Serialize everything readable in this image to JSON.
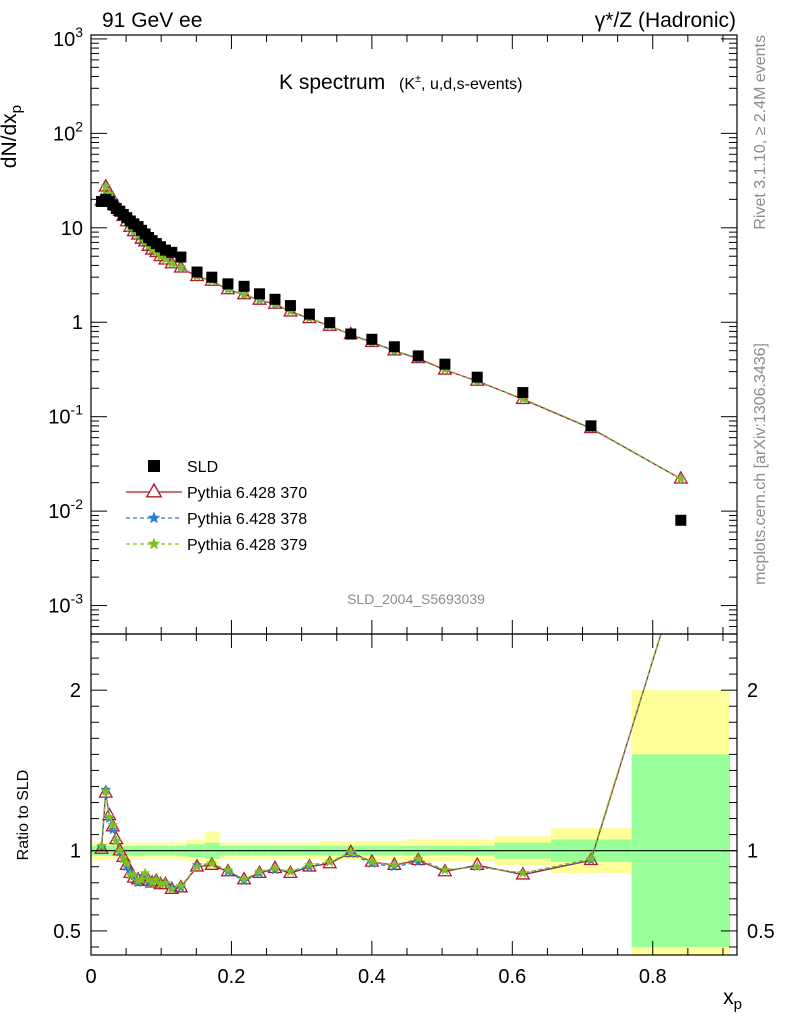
{
  "header": {
    "left": "91 GeV ee",
    "right": "γ*/Z (Hadronic)"
  },
  "side_labels": {
    "rivet": "Rivet 3.1.10, ≥ 2.4M events",
    "mcplots": "mcplots.cern.ch [arXiv:1306.3436]"
  },
  "chart_data": {
    "type": "scatter",
    "title": "K spectrum",
    "title_sub": "(K±, u,d,s-events)",
    "analysis_id": "SLD_2004_S5693039",
    "xlabel": "x_p",
    "ylabel": "dN/dx_p",
    "ratio_ylabel": "Ratio to SLD",
    "xlim": [
      0,
      0.92
    ],
    "ylim": [
      0.0005,
      1100
    ],
    "ylog": true,
    "ratio_ylim": [
      0.35,
      2.35
    ],
    "x_ticks": [
      "0",
      "0.2",
      "0.4",
      "0.6",
      "0.8"
    ],
    "y_ticks": [
      "10^-3",
      "10^-2",
      "10^-1",
      "1",
      "10",
      "10^2",
      "10^3"
    ],
    "ratio_ticks": [
      "0.5",
      "1",
      "2"
    ],
    "legend": {
      "position": "middle-left",
      "entries": [
        "SLD",
        "Pythia 6.428 370",
        "Pythia 6.428 378",
        "Pythia 6.428 379"
      ]
    },
    "x": [
      0.015,
      0.021,
      0.026,
      0.031,
      0.036,
      0.041,
      0.046,
      0.051,
      0.056,
      0.061,
      0.067,
      0.072,
      0.077,
      0.082,
      0.087,
      0.093,
      0.099,
      0.106,
      0.115,
      0.128,
      0.151,
      0.172,
      0.195,
      0.218,
      0.24,
      0.262,
      0.284,
      0.311,
      0.34,
      0.37,
      0.4,
      0.432,
      0.466,
      0.504,
      0.55,
      0.615,
      0.712,
      0.84
    ],
    "data": [
      19.0,
      20.0,
      19.0,
      17.5,
      16.0,
      15.0,
      13.8,
      12.8,
      11.8,
      11.0,
      10.3,
      9.4,
      8.6,
      7.9,
      7.3,
      6.8,
      6.3,
      5.8,
      5.5,
      4.9,
      3.4,
      3.0,
      2.55,
      2.4,
      2.0,
      1.75,
      1.5,
      1.22,
      0.99,
      0.75,
      0.66,
      0.55,
      0.44,
      0.36,
      0.262,
      0.18,
      0.08,
      0.008
    ],
    "series": [
      {
        "name": "SLD",
        "color": "#000000",
        "marker": "square"
      },
      {
        "name": "Pythia 6.428 370",
        "color": "#b2182b",
        "marker": "open-triangle"
      },
      {
        "name": "Pythia 6.428 378",
        "color": "#2c7bd6",
        "marker": "star"
      },
      {
        "name": "Pythia 6.428 379",
        "color": "#7fbf1f",
        "marker": "star"
      }
    ],
    "ratio": {
      "p370": [
        1.01,
        1.36,
        1.22,
        1.15,
        1.07,
        1.0,
        0.96,
        0.91,
        0.86,
        0.83,
        0.82,
        0.81,
        0.83,
        0.81,
        0.8,
        0.81,
        0.79,
        0.79,
        0.76,
        0.77,
        0.9,
        0.91,
        0.87,
        0.82,
        0.86,
        0.89,
        0.86,
        0.9,
        0.92,
        0.99,
        0.93,
        0.91,
        0.94,
        0.87,
        0.91,
        0.85,
        0.94,
        2.75
      ],
      "p378": [
        1.02,
        1.38,
        1.2,
        1.13,
        1.06,
        0.99,
        0.95,
        0.9,
        0.87,
        0.84,
        0.8,
        0.82,
        0.84,
        0.8,
        0.81,
        0.82,
        0.8,
        0.8,
        0.77,
        0.77,
        0.91,
        0.92,
        0.87,
        0.81,
        0.86,
        0.88,
        0.87,
        0.9,
        0.93,
        0.98,
        0.92,
        0.9,
        0.93,
        0.88,
        0.9,
        0.86,
        0.94,
        2.75
      ],
      "p379": [
        1.03,
        1.37,
        1.21,
        1.16,
        1.06,
        1.0,
        0.95,
        0.92,
        0.85,
        0.85,
        0.81,
        0.82,
        0.86,
        0.82,
        0.8,
        0.82,
        0.79,
        0.8,
        0.76,
        0.78,
        0.9,
        0.92,
        0.88,
        0.82,
        0.87,
        0.89,
        0.87,
        0.91,
        0.93,
        0.99,
        0.93,
        0.91,
        0.95,
        0.88,
        0.9,
        0.86,
        0.95,
        2.75
      ]
    },
    "bands": {
      "edges": [
        0.0,
        0.0175,
        0.023,
        0.028,
        0.033,
        0.038,
        0.043,
        0.048,
        0.053,
        0.058,
        0.064,
        0.069,
        0.074,
        0.079,
        0.084,
        0.09,
        0.096,
        0.102,
        0.11,
        0.12,
        0.136,
        0.162,
        0.183,
        0.207,
        0.229,
        0.251,
        0.273,
        0.296,
        0.326,
        0.355,
        0.385,
        0.416,
        0.45,
        0.483,
        0.525,
        0.575,
        0.655,
        0.77,
        0.91
      ],
      "stat": [
        0.03,
        0.03,
        0.03,
        0.03,
        0.03,
        0.03,
        0.03,
        0.03,
        0.03,
        0.03,
        0.03,
        0.03,
        0.03,
        0.03,
        0.03,
        0.03,
        0.03,
        0.03,
        0.03,
        0.03,
        0.04,
        0.05,
        0.03,
        0.03,
        0.03,
        0.03,
        0.03,
        0.03,
        0.03,
        0.03,
        0.03,
        0.03,
        0.03,
        0.03,
        0.03,
        0.05,
        0.07,
        0.6
      ],
      "total": [
        0.06,
        0.05,
        0.05,
        0.05,
        0.05,
        0.05,
        0.05,
        0.05,
        0.05,
        0.05,
        0.05,
        0.05,
        0.05,
        0.05,
        0.05,
        0.05,
        0.05,
        0.05,
        0.05,
        0.05,
        0.07,
        0.12,
        0.05,
        0.05,
        0.05,
        0.05,
        0.05,
        0.05,
        0.06,
        0.06,
        0.06,
        0.06,
        0.07,
        0.07,
        0.07,
        0.09,
        0.14,
        1.0
      ],
      "stat_color": "#99ff99",
      "total_color": "#ffff99"
    }
  }
}
